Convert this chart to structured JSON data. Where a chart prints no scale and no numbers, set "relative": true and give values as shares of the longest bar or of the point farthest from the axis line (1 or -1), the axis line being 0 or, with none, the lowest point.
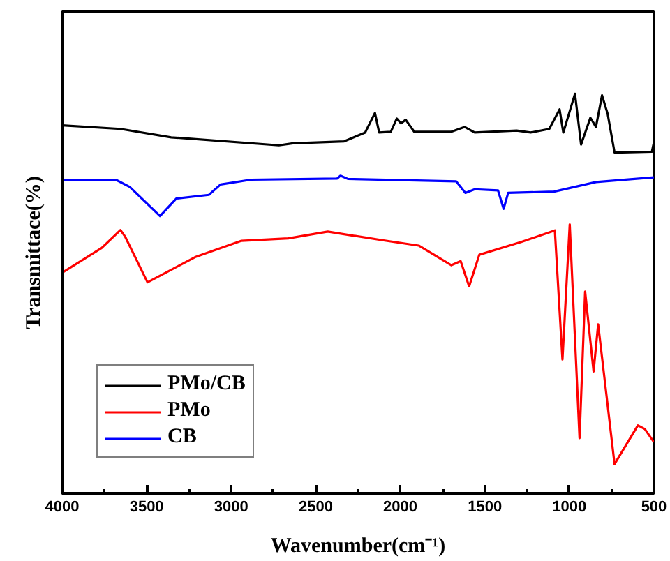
{
  "chart_data": {
    "type": "line",
    "relative": true,
    "xlabel": "Wavenumber(cm⁻¹)",
    "ylabel": "Transmittace(%)",
    "xlim": [
      4000,
      500
    ],
    "xticks": [
      4000,
      3500,
      3000,
      2500,
      2000,
      1500,
      1000,
      500
    ],
    "grid": false,
    "legend": "bottom left",
    "tick_labels": "x",
    "line_style": "solid",
    "marker": "none",
    "series": [
      {
        "name": "PMo/CB",
        "color": "#000000",
        "x": [
          4000,
          3655,
          3355,
          2718,
          2635,
          2332,
          2208,
          2150,
          2125,
          2056,
          2021,
          1996,
          1968,
          1918,
          1698,
          1620,
          1560,
          1312,
          1229,
          1119,
          1058,
          1036,
          967,
          931,
          876,
          843,
          807,
          774,
          733,
          512,
          500
        ],
        "values": [
          0.921,
          0.912,
          0.891,
          0.871,
          0.876,
          0.881,
          0.903,
          0.952,
          0.903,
          0.905,
          0.938,
          0.926,
          0.935,
          0.905,
          0.905,
          0.917,
          0.903,
          0.908,
          0.903,
          0.912,
          0.961,
          0.903,
          1.0,
          0.873,
          0.94,
          0.917,
          0.996,
          0.95,
          0.853,
          0.855,
          0.879
        ]
      },
      {
        "name": "PMo",
        "color": "#ff0000",
        "x": [
          4000,
          3766,
          3655,
          3628,
          3495,
          3214,
          2939,
          2663,
          2429,
          2112,
          1891,
          1698,
          1643,
          1593,
          1533,
          1285,
          1086,
          1041,
          998,
          940,
          907,
          857,
          830,
          733,
          595,
          554,
          500
        ],
        "values": [
          0.552,
          0.614,
          0.659,
          0.643,
          0.528,
          0.591,
          0.632,
          0.638,
          0.655,
          0.634,
          0.62,
          0.571,
          0.581,
          0.518,
          0.597,
          0.629,
          0.658,
          0.335,
          0.673,
          0.138,
          0.505,
          0.305,
          0.423,
          0.073,
          0.17,
          0.161,
          0.128
        ]
      },
      {
        "name": "CB",
        "color": "#0000ff",
        "x": [
          4000,
          3683,
          3600,
          3421,
          3324,
          3132,
          3063,
          2883,
          2373,
          2354,
          2310,
          1670,
          1615,
          1560,
          1422,
          1389,
          1362,
          1091,
          843,
          500
        ],
        "values": [
          0.785,
          0.785,
          0.767,
          0.694,
          0.738,
          0.747,
          0.773,
          0.785,
          0.788,
          0.795,
          0.787,
          0.781,
          0.752,
          0.761,
          0.758,
          0.712,
          0.752,
          0.755,
          0.779,
          0.791
        ]
      }
    ]
  }
}
